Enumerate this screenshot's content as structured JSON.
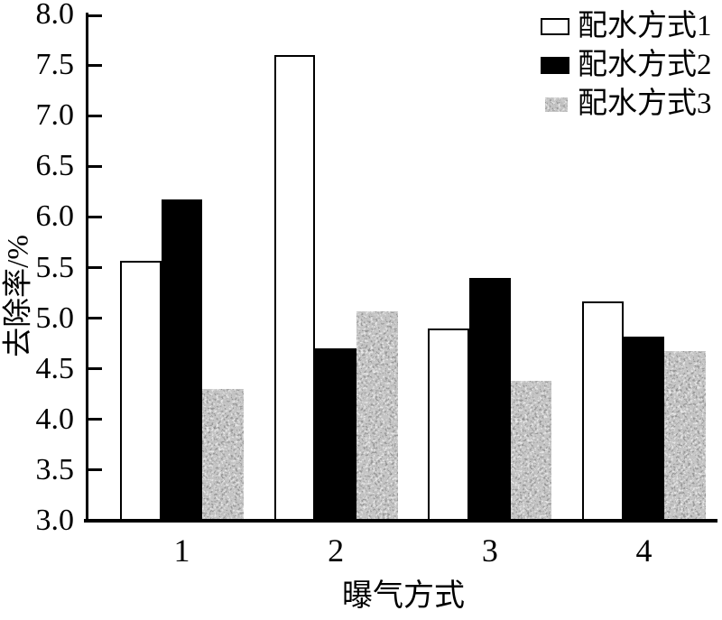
{
  "figure": {
    "background": "#ffffff",
    "axis_color": "#000000"
  },
  "chart_data": {
    "type": "bar",
    "title": "",
    "xlabel": "曝气方式",
    "ylabel": "去除率/%",
    "categories": [
      "1",
      "2",
      "3",
      "4"
    ],
    "series": [
      {
        "name": "配水方式1",
        "style": "white",
        "fill": "#ffffff",
        "border": "#000000",
        "values": [
          5.57,
          7.6,
          4.9,
          5.17
        ]
      },
      {
        "name": "配水方式2",
        "style": "black",
        "fill": "#000000",
        "border": "#000000",
        "values": [
          6.17,
          4.7,
          5.4,
          4.82
        ]
      },
      {
        "name": "配水方式3",
        "style": "speckled",
        "fill": "speckle-texture",
        "values": [
          4.3,
          5.07,
          4.38,
          4.68
        ]
      }
    ],
    "ylim": [
      3.0,
      8.0
    ],
    "ytick_step": 0.5,
    "yticks": [
      "8.0",
      "7.5",
      "7.0",
      "6.5",
      "6.0",
      "5.5",
      "5.0",
      "4.5",
      "4.0",
      "3.5",
      "3.0"
    ],
    "legend_position": "top-right",
    "grid": false,
    "tick_direction": "in"
  }
}
